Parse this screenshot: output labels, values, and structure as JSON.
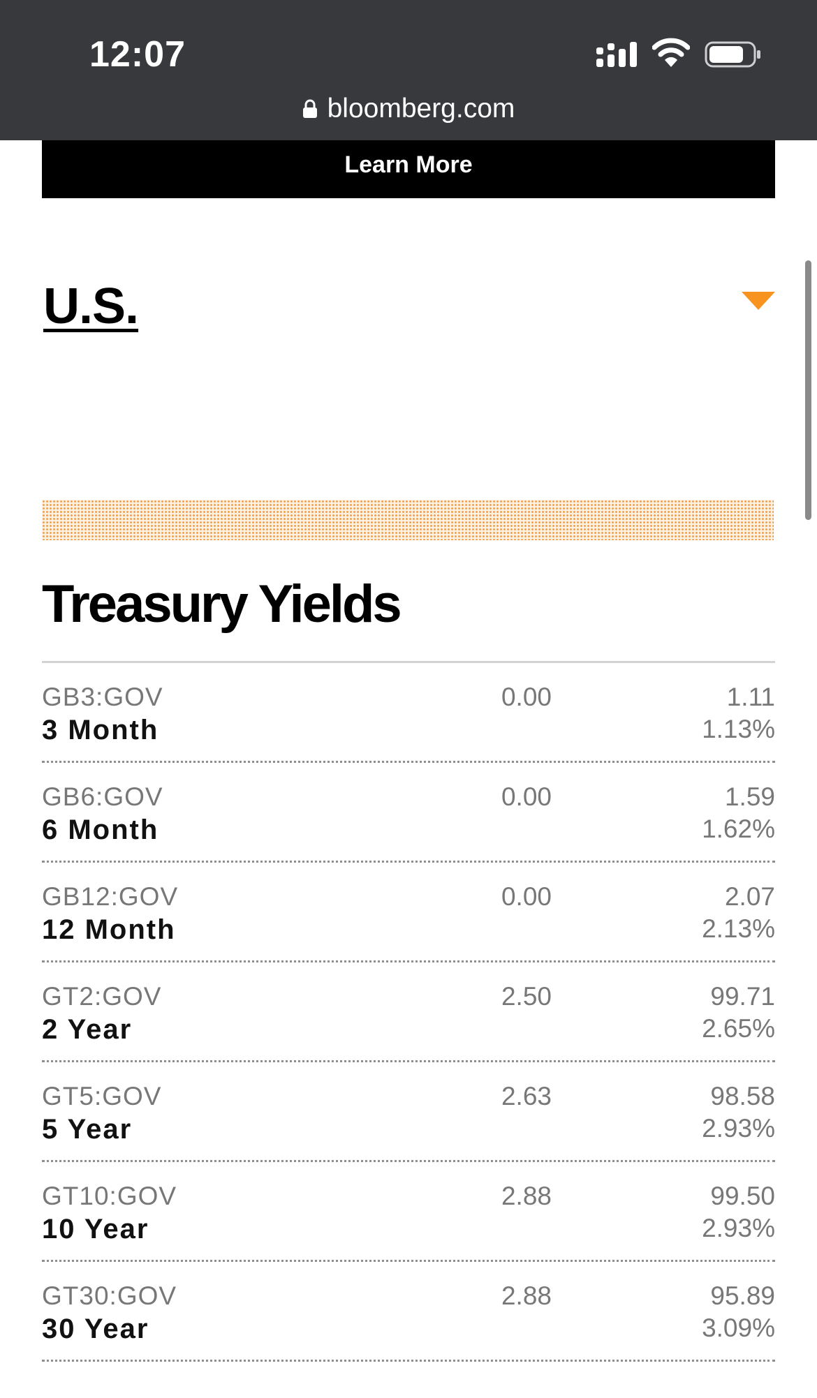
{
  "status_bar": {
    "time": "12:07",
    "icons": [
      "signal-icon",
      "wifi-icon",
      "battery-icon"
    ],
    "url": "bloomberg.com"
  },
  "banner": {
    "learn_more_label": "Learn More"
  },
  "region": {
    "title": "U.S.",
    "dropdown_color": "#f7931e"
  },
  "section_title": "Treasury Yields",
  "colors": {
    "accent": "#f7931e",
    "status_bar_bg": "#38393d"
  },
  "yields": [
    {
      "ticker": "GB3:GOV",
      "term": "3 Month",
      "coupon": "0.00",
      "price": "1.11",
      "yield": "1.13%"
    },
    {
      "ticker": "GB6:GOV",
      "term": "6 Month",
      "coupon": "0.00",
      "price": "1.59",
      "yield": "1.62%"
    },
    {
      "ticker": "GB12:GOV",
      "term": "12 Month",
      "coupon": "0.00",
      "price": "2.07",
      "yield": "2.13%"
    },
    {
      "ticker": "GT2:GOV",
      "term": "2 Year",
      "coupon": "2.50",
      "price": "99.71",
      "yield": "2.65%"
    },
    {
      "ticker": "GT5:GOV",
      "term": "5 Year",
      "coupon": "2.63",
      "price": "98.58",
      "yield": "2.93%"
    },
    {
      "ticker": "GT10:GOV",
      "term": "10 Year",
      "coupon": "2.88",
      "price": "99.50",
      "yield": "2.93%"
    },
    {
      "ticker": "GT30:GOV",
      "term": "30 Year",
      "coupon": "2.88",
      "price": "95.89",
      "yield": "3.09%"
    }
  ]
}
